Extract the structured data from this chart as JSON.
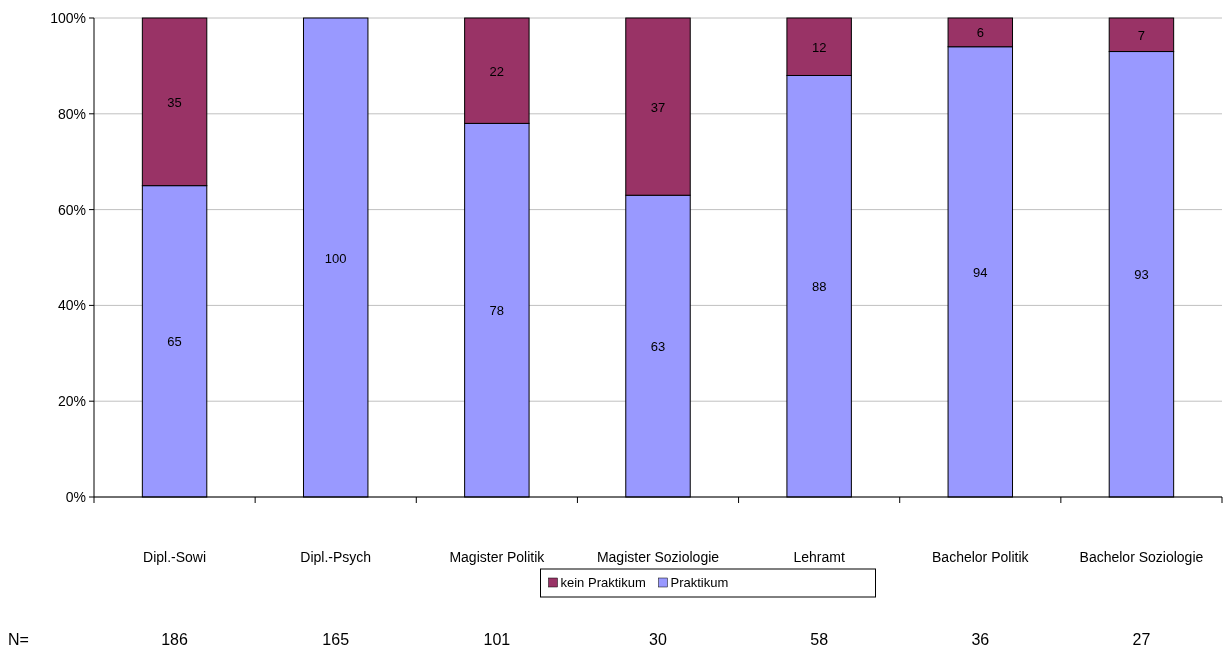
{
  "chart_data": {
    "type": "bar",
    "stacked": true,
    "categories": [
      "Dipl.-Sowi",
      "Dipl.-Psych",
      "Magister Politik",
      "Magister Soziologie",
      "Lehramt",
      "Bachelor Politik",
      "Bachelor Soziologie"
    ],
    "series": [
      {
        "name": "Praktikum",
        "color": "#9999ff",
        "values": [
          65,
          100,
          78,
          63,
          88,
          94,
          93
        ]
      },
      {
        "name": "kein Praktikum",
        "color": "#993366",
        "values": [
          35,
          null,
          22,
          37,
          12,
          6,
          7
        ]
      }
    ],
    "ylim": [
      0,
      100
    ],
    "yticks": [
      {
        "value": 0,
        "label": "0%"
      },
      {
        "value": 20,
        "label": "20%"
      },
      {
        "value": 40,
        "label": "40%"
      },
      {
        "value": 60,
        "label": "60%"
      },
      {
        "value": 80,
        "label": "80%"
      },
      {
        "value": 100,
        "label": "100%"
      }
    ],
    "grid": "y",
    "data_labels": true,
    "legend": "bottom",
    "annotations": [
      "N=",
      "186",
      "165",
      "101",
      "30",
      "58",
      "36",
      "27"
    ]
  }
}
